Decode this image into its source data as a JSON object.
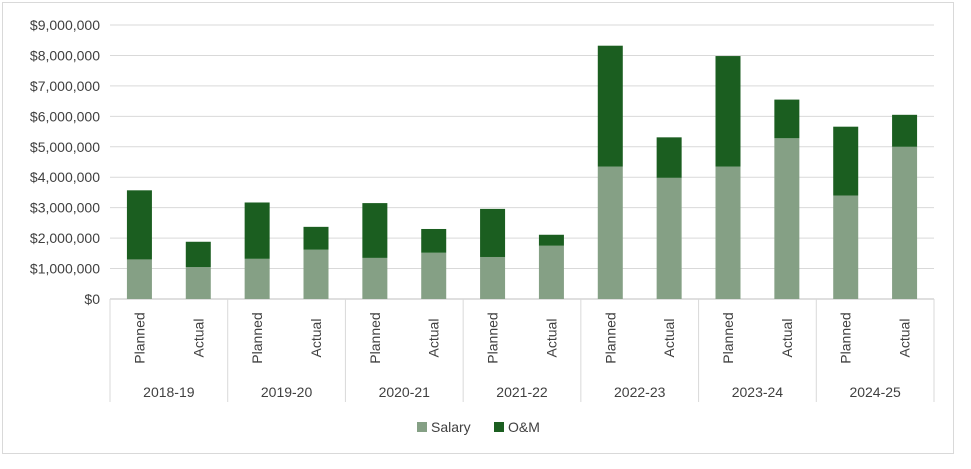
{
  "chart_data": {
    "type": "bar",
    "stacked": true,
    "title": "",
    "xlabel": "",
    "ylabel": "",
    "ylim": [
      0,
      9000000
    ],
    "y_ticks": [
      "$0",
      "$1,000,000",
      "$2,000,000",
      "$3,000,000",
      "$4,000,000",
      "$5,000,000",
      "$6,000,000",
      "$7,000,000",
      "$8,000,000",
      "$9,000,000"
    ],
    "y_tick_values": [
      0,
      1000000,
      2000000,
      3000000,
      4000000,
      5000000,
      6000000,
      7000000,
      8000000,
      9000000
    ],
    "grid": true,
    "legend_position": "bottom",
    "groups": [
      "2018-19",
      "2019-20",
      "2020-21",
      "2021-22",
      "2022-23",
      "2023-24",
      "2024-25"
    ],
    "subcategories": [
      "Planned",
      "Actual"
    ],
    "categories": [
      "2018-19 Planned",
      "2018-19 Actual",
      "2019-20 Planned",
      "2019-20 Actual",
      "2020-21 Planned",
      "2020-21 Actual",
      "2021-22 Planned",
      "2021-22 Actual",
      "2022-23 Planned",
      "2022-23 Actual",
      "2023-24 Planned",
      "2023-24 Actual",
      "2024-25 Planned",
      "2024-25 Actual"
    ],
    "series": [
      {
        "name": "Salary",
        "color": "#85a085",
        "values": [
          1300000,
          1050000,
          1320000,
          1620000,
          1350000,
          1520000,
          1380000,
          1750000,
          4350000,
          3980000,
          4350000,
          5280000,
          3400000,
          5000000
        ]
      },
      {
        "name": "O&M",
        "color": "#1b5e20",
        "values": [
          2270000,
          830000,
          1850000,
          750000,
          1800000,
          780000,
          1580000,
          360000,
          3970000,
          1330000,
          3630000,
          1270000,
          2260000,
          1050000
        ]
      }
    ]
  }
}
